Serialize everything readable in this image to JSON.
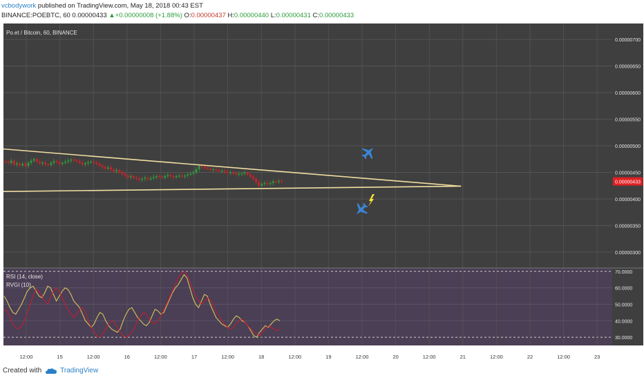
{
  "header": {
    "author": "vcbodywork",
    "published": " published on TradingView.com, May 18, 2018 00:43 EST",
    "symbol": "BINANCE:POEBTC, 60",
    "last": "0.00000433",
    "up_arrow": "▲",
    "change": "+0.00000008 (+1.88%)",
    "o_label": "O:",
    "o_value": "0.00000437",
    "h_label": "H:",
    "h_value": "0.00000440",
    "l_label": "L:",
    "l_value": "0.00000431",
    "c_label": "C:",
    "c_value": "0.00000433"
  },
  "chart": {
    "title": "Po.et / Bitcoin, 60, BINANCE",
    "price_label": "0.00000433",
    "rsi_label": "RSI (14, close)",
    "rvgi_label": "RVGI (10)",
    "colors": {
      "background": "#3f3f3f",
      "grid": "#555555",
      "triangle": "#f3dfa2",
      "candle_up": "#2e9e3a",
      "candle_down": "#d0212b",
      "indicator_bg": "#4a3f55",
      "rsi_line": "#d9c458",
      "rvgi_line": "#c21e32",
      "price_tag": "#e02024",
      "jet": "#3a86d8",
      "bolt": "#f5e03a"
    },
    "icons": [
      "jet-up-icon",
      "jet-down-icon",
      "lightning-icon"
    ]
  },
  "chart_data": [
    {
      "type": "candlestick",
      "title": "Po.et / Bitcoin, 60, BINANCE",
      "y_ticks": [
        "0.00000700",
        "0.00000650",
        "0.00000600",
        "0.00000550",
        "0.00000500",
        "0.00000450",
        "0.00000400",
        "0.00000350",
        "0.00000300"
      ],
      "x_ticks": [
        "12:00",
        "15",
        "12:00",
        "16",
        "12:00",
        "17",
        "12:00",
        "18",
        "12:00",
        "19",
        "12:00",
        "20",
        "12:00",
        "21",
        "12:00",
        "22",
        "12:00",
        "23"
      ],
      "ylim": [
        2.7e-06,
        7.3e-06
      ],
      "last_price": 4.33e-06,
      "series": [
        {
          "closes": [
            4.7e-06,
            4.68e-06,
            4.72e-06,
            4.65e-06,
            4.67e-06,
            4.63e-06,
            4.66e-06,
            4.62e-06,
            4.68e-06,
            4.72e-06,
            4.75e-06,
            4.7e-06,
            4.67e-06,
            4.68e-06,
            4.65e-06,
            4.64e-06,
            4.68e-06,
            4.71e-06,
            4.69e-06,
            4.66e-06,
            4.68e-06,
            4.7e-06,
            4.72e-06,
            4.74e-06,
            4.73e-06,
            4.71e-06,
            4.68e-06,
            4.65e-06,
            4.67e-06,
            4.69e-06,
            4.7e-06,
            4.68e-06,
            4.66e-06,
            4.63e-06,
            4.6e-06,
            4.57e-06,
            4.59e-06,
            4.55e-06,
            4.52e-06,
            4.54e-06,
            4.5e-06,
            4.47e-06,
            4.44e-06,
            4.41e-06,
            4.43e-06,
            4.4e-06,
            4.38e-06,
            4.36e-06,
            4.38e-06,
            4.4e-06,
            4.37e-06,
            4.39e-06,
            4.41e-06,
            4.43e-06,
            4.42e-06,
            4.4e-06,
            4.43e-06,
            4.45e-06,
            4.43e-06,
            4.41e-06,
            4.43e-06,
            4.44e-06,
            4.42e-06,
            4.44e-06,
            4.46e-06,
            4.48e-06,
            4.5e-06,
            4.56e-06,
            4.62e-06,
            4.6e-06,
            4.58e-06,
            4.57e-06,
            4.55e-06,
            4.56e-06,
            4.54e-06,
            4.52e-06,
            4.53e-06,
            4.51e-06,
            4.49e-06,
            4.5e-06,
            4.48e-06,
            4.46e-06,
            4.47e-06,
            4.48e-06,
            4.5e-06,
            4.46e-06,
            4.42e-06,
            4.38e-06,
            4.32e-06,
            4.25e-06,
            4.28e-06,
            4.3e-06,
            4.28e-06,
            4.3e-06,
            4.33e-06,
            4.32e-06,
            4.34e-06,
            4.33e-06
          ]
        }
      ],
      "trendlines": [
        {
          "name": "upper",
          "from": [
            0,
            4.94e-06
          ],
          "to": [
            160,
            4.24e-06
          ]
        },
        {
          "name": "lower",
          "from": [
            0,
            4.14e-06
          ],
          "to": [
            160,
            4.24e-06
          ]
        }
      ]
    },
    {
      "type": "line",
      "title": "RSI (14, close) / RVGI (10)",
      "y_ticks": [
        "70.0000",
        "60.0000",
        "50.0000",
        "40.0000",
        "30.0000"
      ],
      "ylim": [
        25,
        72
      ],
      "series": [
        {
          "name": "RSI (14, close)",
          "values": [
            55,
            52,
            48,
            45,
            44,
            47,
            50,
            54,
            58,
            60,
            61,
            58,
            55,
            54,
            57,
            61,
            60,
            56,
            52,
            55,
            58,
            60,
            59,
            56,
            52,
            50,
            48,
            44,
            40,
            38,
            36,
            38,
            42,
            45,
            44,
            40,
            37,
            35,
            34,
            33,
            35,
            40,
            44,
            47,
            48,
            45,
            42,
            40,
            38,
            37,
            39,
            43,
            47,
            46,
            44,
            45,
            49,
            53,
            57,
            60,
            62,
            65,
            68,
            66,
            60,
            54,
            50,
            48,
            52,
            56,
            55,
            50,
            46,
            42,
            40,
            38,
            37,
            36,
            38,
            41,
            43,
            42,
            40,
            39,
            37,
            34,
            31,
            30,
            33,
            35,
            37,
            36,
            38,
            40,
            41,
            40
          ]
        },
        {
          "name": "RVGI (10)",
          "values": [
            47,
            46,
            42,
            38,
            36,
            35,
            37,
            40,
            45,
            50,
            55,
            59,
            58,
            55,
            52,
            50,
            54,
            58,
            60,
            58,
            54,
            50,
            47,
            44,
            42,
            44,
            47,
            48,
            45,
            40,
            36,
            33,
            31,
            30,
            32,
            35,
            38,
            40,
            39,
            36,
            33,
            31,
            30,
            31,
            33,
            36,
            40,
            43,
            45,
            44,
            41,
            39,
            38,
            40,
            43,
            47,
            50,
            54,
            58,
            62,
            66,
            69,
            70,
            68,
            64,
            59,
            55,
            52,
            50,
            52,
            54,
            53,
            50,
            46,
            43,
            40,
            38,
            36,
            35,
            36,
            38,
            40,
            41,
            39,
            37,
            35,
            33,
            32,
            31,
            33,
            35,
            37,
            36,
            35,
            34,
            35
          ]
        }
      ]
    }
  ],
  "footer": {
    "created_with": "Created with",
    "brand": "TradingView"
  }
}
